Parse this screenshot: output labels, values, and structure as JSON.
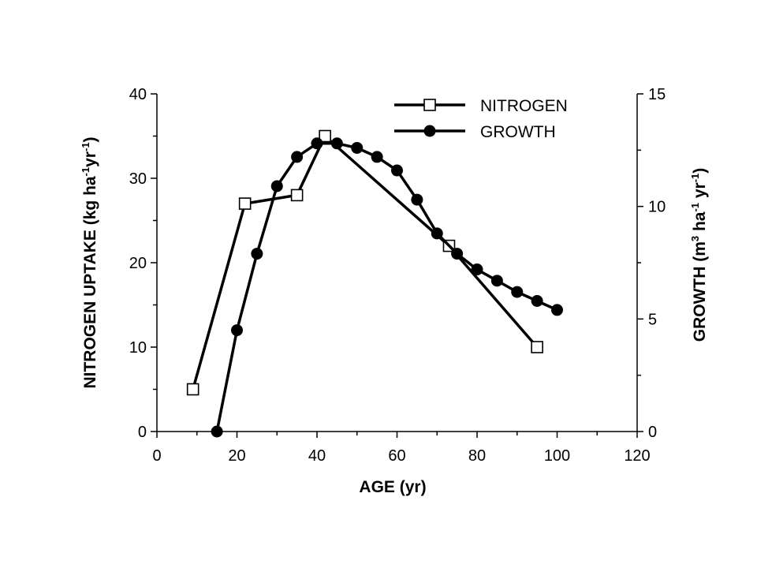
{
  "chart_data": {
    "type": "line",
    "x_axis": {
      "label": "AGE (yr)",
      "range": [
        0,
        120
      ],
      "ticks": [
        0,
        20,
        40,
        60,
        80,
        100,
        120
      ]
    },
    "y_axis_left": {
      "label_main": "NITROGEN UPTAKE (kg ha",
      "label_sup1": "-1",
      "label_mid": "yr",
      "label_sup2": "-1",
      "label_end": ")",
      "range": [
        0,
        40
      ],
      "ticks": [
        0,
        10,
        20,
        30,
        40
      ]
    },
    "y_axis_right": {
      "label_main": "GROWTH (m",
      "label_sup1": "3",
      "label_mid1": " ha",
      "label_sup2": "-1",
      "label_mid2": " yr",
      "label_sup3": "-1",
      "label_end": ")",
      "range": [
        0,
        15
      ],
      "ticks": [
        0,
        5,
        10,
        15
      ]
    },
    "grid": false,
    "legend_position": "top-right",
    "series": [
      {
        "name": "NITROGEN",
        "axis": "left",
        "marker": "open-square",
        "color": "#000000",
        "points": [
          [
            9,
            5
          ],
          [
            22,
            27
          ],
          [
            35,
            28
          ],
          [
            42,
            35
          ],
          [
            73,
            22
          ],
          [
            95,
            10
          ]
        ]
      },
      {
        "name": "GROWTH",
        "axis": "right",
        "marker": "filled-circle",
        "color": "#000000",
        "points": [
          [
            15,
            0
          ],
          [
            20,
            4.5
          ],
          [
            25,
            7.9
          ],
          [
            30,
            10.9
          ],
          [
            35,
            12.2
          ],
          [
            40,
            12.8
          ],
          [
            45,
            12.8
          ],
          [
            50,
            12.6
          ],
          [
            55,
            12.2
          ],
          [
            60,
            11.6
          ],
          [
            65,
            10.3
          ],
          [
            70,
            8.8
          ],
          [
            75,
            7.9
          ],
          [
            80,
            7.2
          ],
          [
            85,
            6.7
          ],
          [
            90,
            6.2
          ],
          [
            95,
            5.8
          ],
          [
            100,
            5.4
          ]
        ]
      }
    ]
  }
}
